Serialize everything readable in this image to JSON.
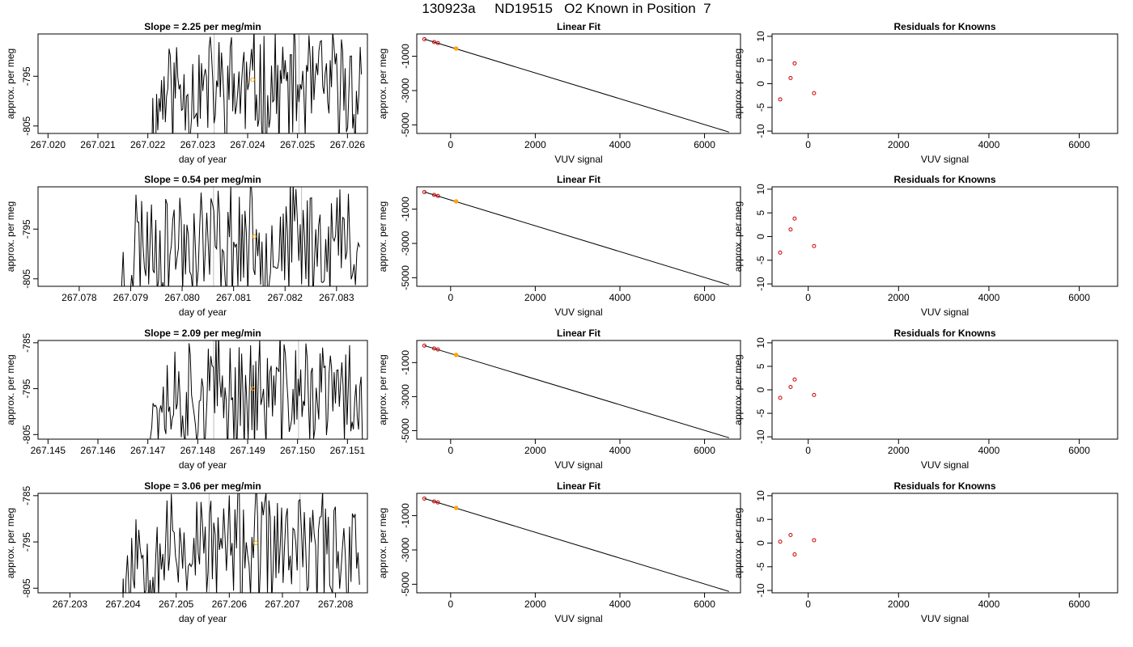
{
  "page": {
    "title": "130923a     ND19515   O2 Known in Position  7"
  },
  "colors": {
    "line": "#000000",
    "frame": "#000000",
    "vline": "#bebebe",
    "highlight": "#ffa500",
    "residual": "#cc0000"
  },
  "chart_data": [
    {
      "type": "line",
      "title": "Slope =  2.25  per meg/min",
      "xlabel": "day of year",
      "ylabel": "approx. per meg",
      "xlim": [
        267.0198,
        267.0264
      ],
      "ylim": [
        -806.5,
        -786.5
      ],
      "xticks": [
        "267.020",
        "267.021",
        "267.022",
        "267.023",
        "267.024",
        "267.025",
        "267.026"
      ],
      "yticks": [
        "-795",
        "-805"
      ],
      "ytick_values": [
        -795,
        -805
      ],
      "seed": 11,
      "series_start": 267.02205,
      "series_end": 267.02628,
      "vlines": [
        267.02333,
        267.02503
      ],
      "highlight": {
        "x": 267.0241,
        "y": -795.7
      }
    },
    {
      "type": "scatter",
      "title": "Linear Fit",
      "xlabel": "VUV signal",
      "ylabel": "approx. per meg",
      "xlim": [
        -800,
        6850
      ],
      "ylim": [
        -5500,
        300
      ],
      "xticks": [
        "0",
        "2000",
        "4000",
        "6000"
      ],
      "xtick_values": [
        0,
        2000,
        4000,
        6000
      ],
      "yticks": [
        "-1000",
        "-3000",
        "-5000"
      ],
      "ytick_values": [
        -1000,
        -3000,
        -5000
      ],
      "fit_line": [
        [
          -620,
          0
        ],
        [
          6580,
          -5420
        ]
      ],
      "points": [
        [
          -620,
          -4
        ],
        [
          -390,
          -170
        ],
        [
          -300,
          -230
        ],
        [
          130,
          -550
        ]
      ],
      "highlight": [
        130,
        -550
      ]
    },
    {
      "type": "scatter",
      "title": "Residuals for Knowns",
      "xlabel": "VUV signal",
      "ylabel": "approx. per meg",
      "xlim": [
        -800,
        6850
      ],
      "ylim": [
        -10.5,
        10.5
      ],
      "xticks": [
        "0",
        "2000",
        "4000",
        "6000"
      ],
      "xtick_values": [
        0,
        2000,
        4000,
        6000
      ],
      "yticks": [
        "-10",
        "-5",
        "0",
        "5",
        "10"
      ],
      "ytick_values": [
        -10,
        -5,
        0,
        5,
        10
      ],
      "points": [
        [
          -620,
          -3.3
        ],
        [
          -390,
          1.2
        ],
        [
          -300,
          4.3
        ],
        [
          130,
          -2.0
        ]
      ]
    },
    {
      "type": "line",
      "title": "Slope =  0.54  per meg/min",
      "xlabel": "day of year",
      "ylabel": "approx. per meg",
      "xlim": [
        267.0772,
        267.0836
      ],
      "ylim": [
        -806.5,
        -786.5
      ],
      "xticks": [
        "267.078",
        "267.079",
        "267.080",
        "267.081",
        "267.082",
        "267.083"
      ],
      "yticks": [
        "-795",
        "-805"
      ],
      "ytick_values": [
        -795,
        -805
      ],
      "seed": 23,
      "series_start": 267.0788,
      "series_end": 267.08345,
      "vlines": [
        267.08061,
        267.08232
      ],
      "highlight": {
        "x": 267.0814,
        "y": -796.5
      }
    },
    {
      "type": "scatter",
      "title": "Linear Fit",
      "xlabel": "VUV signal",
      "ylabel": "approx. per meg",
      "xlim": [
        -800,
        6850
      ],
      "ylim": [
        -5500,
        300
      ],
      "xticks": [
        "0",
        "2000",
        "4000",
        "6000"
      ],
      "xtick_values": [
        0,
        2000,
        4000,
        6000
      ],
      "yticks": [
        "-1000",
        "-3000",
        "-5000"
      ],
      "ytick_values": [
        -1000,
        -3000,
        -5000
      ],
      "fit_line": [
        [
          -620,
          0
        ],
        [
          6580,
          -5420
        ]
      ],
      "points": [
        [
          -620,
          -4
        ],
        [
          -390,
          -170
        ],
        [
          -300,
          -230
        ],
        [
          130,
          -550
        ]
      ],
      "highlight": [
        130,
        -550
      ]
    },
    {
      "type": "scatter",
      "title": "Residuals for Knowns",
      "xlabel": "VUV signal",
      "ylabel": "approx. per meg",
      "xlim": [
        -800,
        6850
      ],
      "ylim": [
        -10.5,
        10.5
      ],
      "xticks": [
        "0",
        "2000",
        "4000",
        "6000"
      ],
      "xtick_values": [
        0,
        2000,
        4000,
        6000
      ],
      "yticks": [
        "-10",
        "-5",
        "0",
        "5",
        "10"
      ],
      "ytick_values": [
        -10,
        -5,
        0,
        5,
        10
      ],
      "points": [
        [
          -620,
          -3.4
        ],
        [
          -390,
          1.5
        ],
        [
          -300,
          3.8
        ],
        [
          130,
          -2.0
        ]
      ]
    },
    {
      "type": "line",
      "title": "Slope =  2.09  per meg/min",
      "xlabel": "day of year",
      "ylabel": "approx. per meg",
      "xlim": [
        267.1448,
        267.1514
      ],
      "ylim": [
        -806,
        -784.5
      ],
      "xticks": [
        "267.145",
        "267.146",
        "267.147",
        "267.148",
        "267.149",
        "267.150",
        "267.151"
      ],
      "yticks": [
        "-785",
        "-795",
        "-805"
      ],
      "ytick_values": [
        -785,
        -795,
        -805
      ],
      "seed": 37,
      "series_start": 267.14695,
      "series_end": 267.1513,
      "vlines": [
        267.14832,
        267.15002
      ],
      "highlight": {
        "x": 267.1491,
        "y": -795.0
      }
    },
    {
      "type": "scatter",
      "title": "Linear Fit",
      "xlabel": "VUV signal",
      "ylabel": "approx. per meg",
      "xlim": [
        -800,
        6850
      ],
      "ylim": [
        -5500,
        300
      ],
      "xticks": [
        "0",
        "2000",
        "4000",
        "6000"
      ],
      "xtick_values": [
        0,
        2000,
        4000,
        6000
      ],
      "yticks": [
        "-1000",
        "-3000",
        "-5000"
      ],
      "ytick_values": [
        -1000,
        -3000,
        -5000
      ],
      "fit_line": [
        [
          -620,
          0
        ],
        [
          6580,
          -5420
        ]
      ],
      "points": [
        [
          -620,
          -4
        ],
        [
          -390,
          -170
        ],
        [
          -300,
          -230
        ],
        [
          130,
          -550
        ]
      ],
      "highlight": [
        130,
        -550
      ]
    },
    {
      "type": "scatter",
      "title": "Residuals for Knowns",
      "xlabel": "VUV signal",
      "ylabel": "approx. per meg",
      "xlim": [
        -800,
        6850
      ],
      "ylim": [
        -10.5,
        10.5
      ],
      "xticks": [
        "0",
        "2000",
        "4000",
        "6000"
      ],
      "xtick_values": [
        0,
        2000,
        4000,
        6000
      ],
      "yticks": [
        "-10",
        "-5",
        "0",
        "5",
        "10"
      ],
      "ytick_values": [
        -10,
        -5,
        0,
        5,
        10
      ],
      "points": [
        [
          -620,
          -1.7
        ],
        [
          -390,
          0.6
        ],
        [
          -300,
          2.2
        ],
        [
          130,
          -1.1
        ]
      ]
    },
    {
      "type": "line",
      "title": "Slope =  3.06  per meg/min",
      "xlabel": "day of year",
      "ylabel": "approx. per meg",
      "xlim": [
        267.2024,
        267.2086
      ],
      "ylim": [
        -806,
        -784.5
      ],
      "xticks": [
        "267.203",
        "267.204",
        "267.205",
        "267.206",
        "267.207",
        "267.208"
      ],
      "yticks": [
        "-785",
        "-795",
        "-805"
      ],
      "ytick_values": [
        -785,
        -795,
        -805
      ],
      "seed": 53,
      "series_start": 267.20395,
      "series_end": 267.20845,
      "vlines": [
        267.20562,
        267.20733
      ],
      "highlight": {
        "x": 267.2065,
        "y": -795.2
      }
    },
    {
      "type": "scatter",
      "title": "Linear Fit",
      "xlabel": "VUV signal",
      "ylabel": "approx. per meg",
      "xlim": [
        -800,
        6850
      ],
      "ylim": [
        -5500,
        300
      ],
      "xticks": [
        "0",
        "2000",
        "4000",
        "6000"
      ],
      "xtick_values": [
        0,
        2000,
        4000,
        6000
      ],
      "yticks": [
        "-1000",
        "-3000",
        "-5000"
      ],
      "ytick_values": [
        -1000,
        -3000,
        -5000
      ],
      "fit_line": [
        [
          -620,
          0
        ],
        [
          6580,
          -5420
        ]
      ],
      "points": [
        [
          -620,
          -4
        ],
        [
          -390,
          -170
        ],
        [
          -300,
          -230
        ],
        [
          130,
          -550
        ]
      ],
      "highlight": [
        130,
        -550
      ]
    },
    {
      "type": "scatter",
      "title": "Residuals for Knowns",
      "xlabel": "VUV signal",
      "ylabel": "approx. per meg",
      "xlim": [
        -800,
        6850
      ],
      "ylim": [
        -10.5,
        10.5
      ],
      "xticks": [
        "0",
        "2000",
        "4000",
        "6000"
      ],
      "xtick_values": [
        0,
        2000,
        4000,
        6000
      ],
      "yticks": [
        "-10",
        "-5",
        "0",
        "5",
        "10"
      ],
      "ytick_values": [
        -10,
        -5,
        0,
        5,
        10
      ],
      "points": [
        [
          -620,
          0.3
        ],
        [
          -390,
          1.7
        ],
        [
          -300,
          -2.4
        ],
        [
          130,
          0.6
        ]
      ]
    }
  ]
}
